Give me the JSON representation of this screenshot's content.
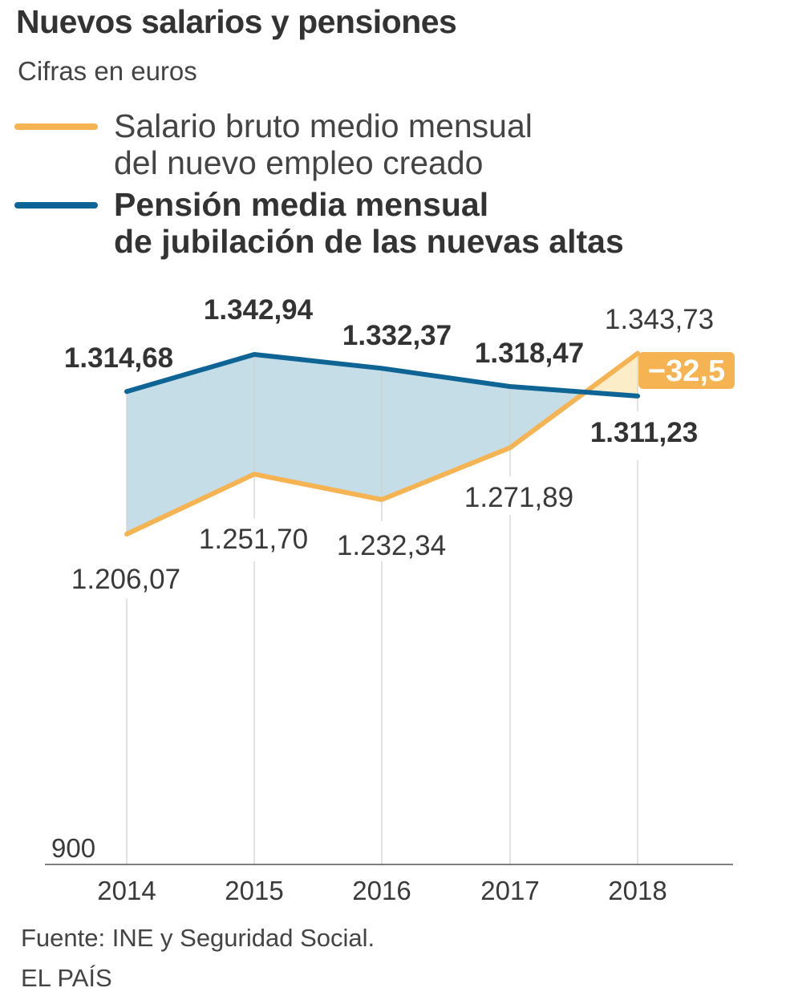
{
  "title": "Nuevos salarios y pensiones",
  "subtitle": "Cifras en euros",
  "legend": [
    {
      "line1": "Salario bruto medio mensual",
      "line2": "del nuevo empleo creado",
      "color": "#f5b352"
    },
    {
      "line1": "Pensión media mensual",
      "line2": "de jubilación de las nuevas altas",
      "color": "#0f6496"
    }
  ],
  "source": "Fuente: INE y Seguridad Social.",
  "credit": "EL PAÍS",
  "chart_data": {
    "type": "line",
    "title": "Nuevos salarios y pensiones",
    "ylabel": "Cifras en euros",
    "x": [
      "2014",
      "2015",
      "2016",
      "2017",
      "2018"
    ],
    "ylim": [
      900,
      1360
    ],
    "y_tick_label": "900",
    "series": [
      {
        "name": "Salario bruto medio mensual del nuevo empleo creado",
        "color": "#f5b352",
        "values": [
          1206.07,
          1251.7,
          1232.34,
          1271.89,
          1343.73
        ],
        "labels": [
          "1.206,07",
          "1.251,70",
          "1.232,34",
          "1.271,89",
          "1.343,73"
        ]
      },
      {
        "name": "Pensión media mensual de jubilación de las nuevas altas",
        "color": "#0f6496",
        "values": [
          1314.68,
          1342.94,
          1332.37,
          1318.47,
          1311.23
        ],
        "labels": [
          "1.314,68",
          "1.342,94",
          "1.332,37",
          "1.318,47",
          "1.311,23"
        ]
      }
    ],
    "annotation": {
      "text": "−32,5",
      "x": "2018",
      "color": "#f5b352"
    },
    "fill_colors": {
      "gap_positive": "#c5dde6",
      "gap_negative": "#fbedc8"
    },
    "grid_color": "#d0d0d0"
  }
}
